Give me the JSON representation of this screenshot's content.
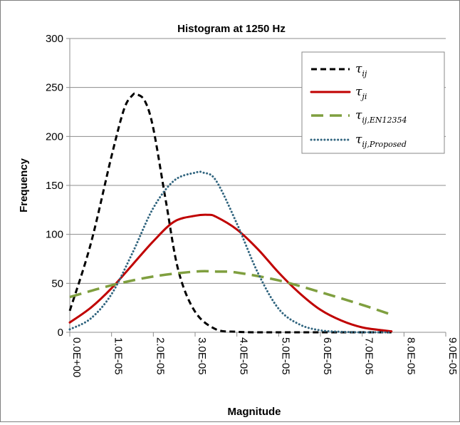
{
  "chart_data": {
    "type": "line",
    "title": "Histogram at 1250 Hz",
    "xlabel": "Magnitude",
    "ylabel": "Frequency",
    "xlim": [
      0,
      9e-05
    ],
    "ylim": [
      0,
      300
    ],
    "x_ticks": [
      "0.0E+00",
      "1.0E-05",
      "2.0E-05",
      "3.0E-05",
      "4.0E-05",
      "5.0E-05",
      "6.0E-05",
      "7.0E-05",
      "8.0E-05",
      "9.0E-05"
    ],
    "y_ticks": [
      "0",
      "50",
      "100",
      "150",
      "200",
      "250",
      "300"
    ],
    "grid": "horizontal",
    "legend_position": "top-right",
    "series": [
      {
        "name": "τ",
        "sub": "ij",
        "color": "#000000",
        "style": "short-dash",
        "x": [
          0,
          5e-06,
          1e-05,
          1.3e-05,
          1.5e-05,
          1.6e-05,
          1.8e-05,
          2e-05,
          2.3e-05,
          2.6e-05,
          3e-05,
          3.5e-05,
          4e-05,
          4.5e-05,
          5e-05,
          6e-05,
          7e-05,
          7.7e-05
        ],
        "y": [
          22,
          90,
          180,
          228,
          242,
          243,
          236,
          208,
          134,
          63,
          21,
          3,
          0.5,
          0,
          0,
          0,
          0,
          0
        ]
      },
      {
        "name": "τ",
        "sub": "ji",
        "color": "#c00000",
        "style": "solid",
        "x": [
          0,
          5e-06,
          1e-05,
          1.5e-05,
          2e-05,
          2.5e-05,
          3e-05,
          3.3e-05,
          3.5e-05,
          4e-05,
          4.5e-05,
          5e-05,
          5.5e-05,
          6e-05,
          6.5e-05,
          7e-05,
          7.5e-05,
          7.7e-05
        ],
        "y": [
          10,
          25,
          45,
          69,
          93,
          113,
          119,
          120,
          118,
          105,
          85,
          61,
          40,
          23,
          12,
          5,
          2,
          1
        ]
      },
      {
        "name": "τ",
        "sub": "ij,EN12354",
        "color": "#7f9f3f",
        "style": "long-dash",
        "x": [
          0,
          1e-05,
          2e-05,
          3e-05,
          3.5e-05,
          4e-05,
          5e-05,
          6e-05,
          7e-05,
          7.7e-05
        ],
        "y": [
          36,
          48,
          57,
          62,
          62,
          61,
          53,
          41,
          28,
          18
        ]
      },
      {
        "name": "τ",
        "sub": "ij,Proposed",
        "color": "#31657f",
        "style": "dotted",
        "x": [
          0,
          5e-06,
          1e-05,
          1.5e-05,
          2e-05,
          2.5e-05,
          3e-05,
          3.2e-05,
          3.5e-05,
          4e-05,
          4.5e-05,
          5e-05,
          5.5e-05,
          6e-05,
          6.5e-05,
          7e-05,
          7.5e-05,
          7.7e-05
        ],
        "y": [
          3,
          14,
          39,
          81,
          127,
          155,
          163,
          163,
          155,
          111,
          61,
          24,
          8,
          2,
          0.5,
          0,
          0,
          0
        ]
      }
    ]
  }
}
